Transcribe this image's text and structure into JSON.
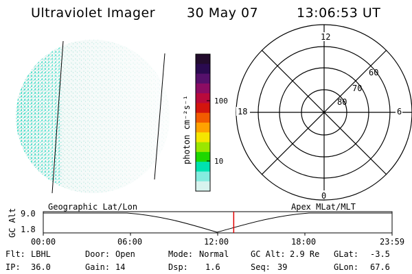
{
  "header": {
    "instrument": "Ultraviolet Imager",
    "date": "30 May 07",
    "time": "13:06:53 UT"
  },
  "colorbar": {
    "unit_label": "photon cm⁻²s⁻¹",
    "ticks": [
      "100",
      "10"
    ],
    "colors": [
      "#230c2d",
      "#2a0a50",
      "#55106b",
      "#8c0c63",
      "#b90a3c",
      "#d3150e",
      "#f25b00",
      "#ffa200",
      "#f5e600",
      "#9ae600",
      "#1ed700",
      "#00e2b0",
      "#85ecdf",
      "#d8f3ee"
    ]
  },
  "polar_plot": {
    "mlt_labels": {
      "top": "12",
      "left": "18",
      "right": "6",
      "bottom": "0"
    },
    "lat_labels": [
      "60",
      "70",
      "80"
    ]
  },
  "orbit_plot": {
    "left_label": "Geographic Lat/Lon",
    "right_label": "Apex MLat/MLT",
    "axis_label": "GC Alt",
    "y_ticks": [
      "9.0",
      "1.8"
    ],
    "time_ticks": [
      "00:00",
      "06:00",
      "12:00",
      "18:00",
      "23:59"
    ],
    "current_time_fraction": 0.546,
    "marker_color": "#e00000"
  },
  "status": {
    "filter_label": "Flt:",
    "filter_value": "LBHL",
    "door_label": "Door:",
    "door_value": "Open",
    "mode_label": "Mode:",
    "mode_value": "Normal",
    "gcalt_label": "GC Alt:",
    "gcalt_value": "2.9 Re",
    "glat_label": "GLat:",
    "glat_value": "-3.5",
    "ip_label": "IP:",
    "ip_value": "36.0",
    "gain_label": "Gain:",
    "gain_value": "14",
    "dsp_label": "Dsp:",
    "dsp_value": "1.6",
    "seq_label": "Seq:",
    "seq_value": "39",
    "glon_label": "GLon:",
    "glon_value": "67.6"
  }
}
